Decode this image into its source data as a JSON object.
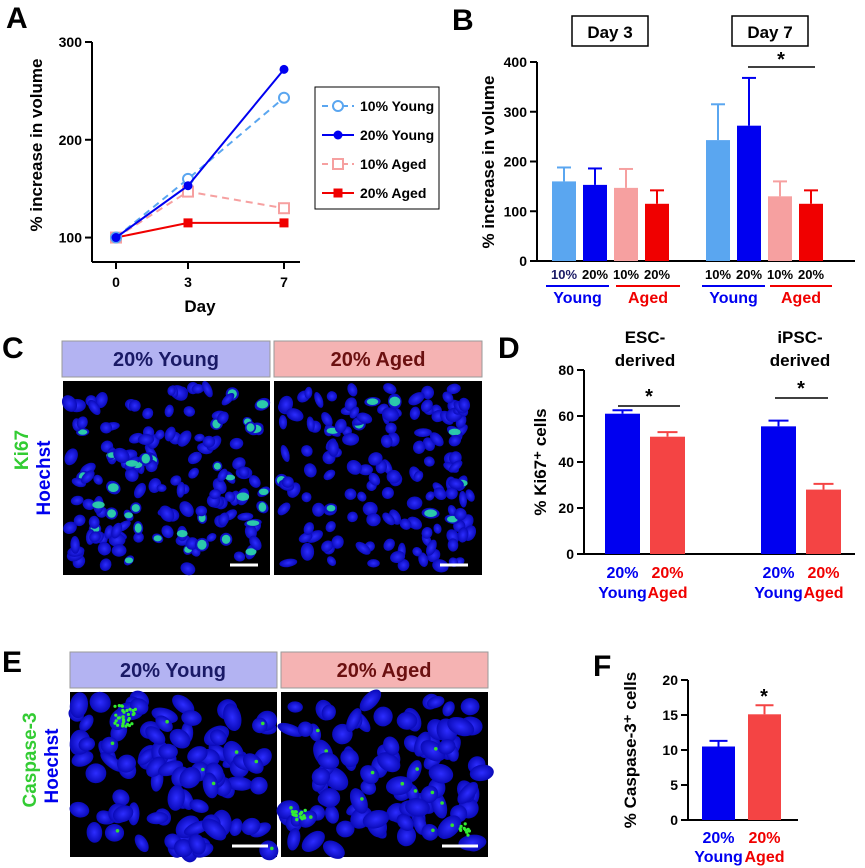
{
  "colors": {
    "young10": "#5aa6f0",
    "young20": "#0000f0",
    "aged10": "#f6a0a0",
    "aged20": "#f00000",
    "young_panel_bg": "#b3b3f2",
    "aged_panel_bg": "#f5b3b3",
    "ki67_green": "#33cc33",
    "hoechst_blue": "#0000ee"
  },
  "panels": {
    "a": "A",
    "b": "B",
    "c": "C",
    "d": "D",
    "e": "E",
    "f": "F"
  },
  "images": {
    "c_young": "20% Young",
    "c_aged": "20% Aged",
    "c_stain1": "Ki67",
    "c_stain2": "Hoechst",
    "e_young": "20% Young",
    "e_aged": "20% Aged",
    "e_stain1": "Caspase-3",
    "e_stain2": "Hoechst"
  },
  "chart_data": [
    {
      "id": "A",
      "type": "line",
      "xlabel": "Day",
      "ylabel": "% increase in volume",
      "x": [
        0,
        3,
        7
      ],
      "xticks": [
        "0",
        "3",
        "7"
      ],
      "yticks": [
        "100",
        "200",
        "300"
      ],
      "ylim": [
        75,
        300
      ],
      "series": [
        {
          "name": "10% Young",
          "values": [
            100,
            160,
            243
          ],
          "color": "#5aa6f0",
          "marker": "open-circle",
          "dash": true
        },
        {
          "name": "20% Young",
          "values": [
            100,
            153,
            272
          ],
          "color": "#0000f0",
          "marker": "filled-circle",
          "dash": false
        },
        {
          "name": "10% Aged",
          "values": [
            100,
            147,
            130
          ],
          "color": "#f6a0a0",
          "marker": "open-square",
          "dash": true
        },
        {
          "name": "20% Aged",
          "values": [
            100,
            115,
            115
          ],
          "color": "#f00000",
          "marker": "filled-square",
          "dash": false
        }
      ]
    },
    {
      "id": "B",
      "type": "bar",
      "ylabel": "% increase in volume",
      "yticks": [
        "0",
        "100",
        "200",
        "300",
        "400"
      ],
      "ylim": [
        0,
        400
      ],
      "groups": [
        {
          "title": "Day 3",
          "bars": [
            {
              "label": "10%",
              "value": 160,
              "err": 28,
              "color": "#5aa6f0"
            },
            {
              "label": "20%",
              "value": 153,
              "err": 33,
              "color": "#0000f0"
            },
            {
              "label": "10%",
              "value": 147,
              "err": 38,
              "color": "#f6a0a0"
            },
            {
              "label": "20%",
              "value": 115,
              "err": 27,
              "color": "#f00000"
            }
          ]
        },
        {
          "title": "Day 7",
          "bars": [
            {
              "label": "10%",
              "value": 243,
              "err": 72,
              "color": "#5aa6f0"
            },
            {
              "label": "20%",
              "value": 272,
              "err": 96,
              "color": "#0000f0"
            },
            {
              "label": "10%",
              "value": 130,
              "err": 30,
              "color": "#f6a0a0"
            },
            {
              "label": "20%",
              "value": 115,
              "err": 27,
              "color": "#f00000"
            }
          ]
        }
      ],
      "group_labels": [
        "Young",
        "Aged",
        "Young",
        "Aged"
      ],
      "annotation": "*"
    },
    {
      "id": "D",
      "type": "bar",
      "ylabel": "% Ki67⁺ cells",
      "yticks": [
        "0",
        "20",
        "40",
        "60",
        "80"
      ],
      "ylim": [
        0,
        80
      ],
      "groups": [
        {
          "title_line1": "ESC-",
          "title_line2": "derived",
          "bars": [
            {
              "label1": "20%",
              "label2": "Young",
              "value": 61,
              "err": 1.5,
              "color": "#0000f0"
            },
            {
              "label1": "20%",
              "label2": "Aged",
              "value": 51,
              "err": 2,
              "color": "#f44444"
            }
          ]
        },
        {
          "title_line1": "iPSC-",
          "title_line2": "derived",
          "bars": [
            {
              "label1": "20%",
              "label2": "Young",
              "value": 55.5,
              "err": 2.5,
              "color": "#0000f0"
            },
            {
              "label1": "20%",
              "label2": "Aged",
              "value": 28,
              "err": 2.5,
              "color": "#f44444"
            }
          ]
        }
      ],
      "annotation": "*"
    },
    {
      "id": "F",
      "type": "bar",
      "ylabel": "% Caspase-3⁺ cells",
      "yticks": [
        "0",
        "5",
        "10",
        "15",
        "20"
      ],
      "ylim": [
        0,
        20
      ],
      "bars": [
        {
          "label1": "20%",
          "label2": "Young",
          "value": 10.5,
          "err": 0.8,
          "color": "#0000f0"
        },
        {
          "label1": "20%",
          "label2": "Aged",
          "value": 15.1,
          "err": 1.3,
          "color": "#f44444"
        }
      ],
      "annotation": "*"
    }
  ]
}
